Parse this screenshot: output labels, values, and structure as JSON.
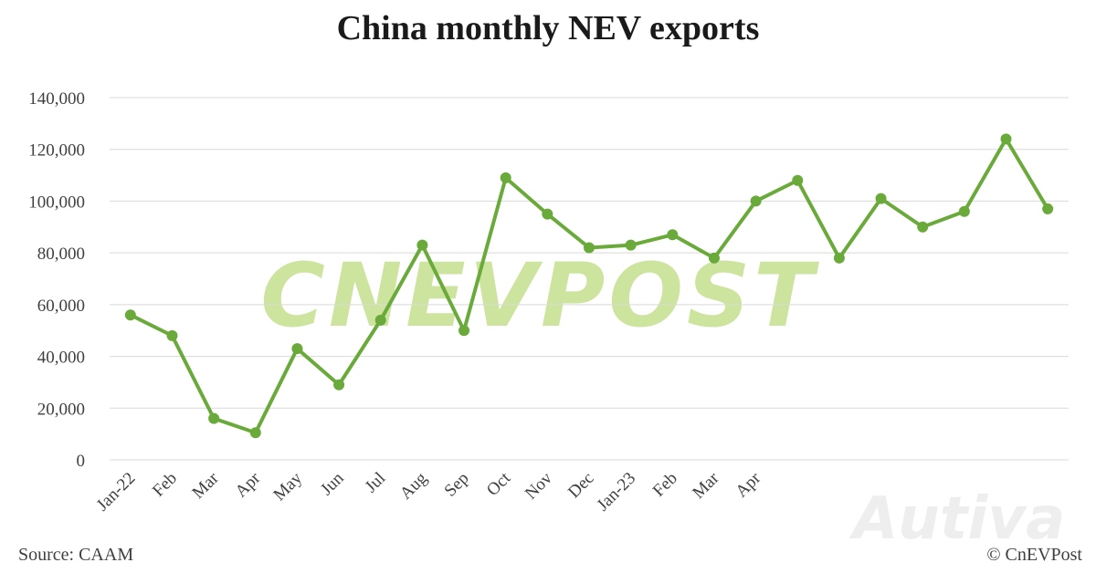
{
  "chart_data": {
    "type": "line",
    "title": "China monthly NEV exports",
    "source": "Source: CAAM",
    "credit": "© CnEVPost",
    "watermark": "CNEVPOST",
    "watermark_secondary": "Autiva",
    "categories": [
      "Jan-22",
      "Feb",
      "Mar",
      "Apr",
      "May",
      "Jun",
      "Jul",
      "Aug",
      "Sep",
      "Oct",
      "Nov",
      "Dec",
      "Jan-23",
      "Feb",
      "Mar",
      "Apr",
      null,
      null,
      null,
      null,
      null,
      null,
      null
    ],
    "series": [
      {
        "name": "NEV exports",
        "color": "#6aaa3a",
        "values": [
          56000,
          48000,
          16000,
          10500,
          43000,
          29000,
          54000,
          83000,
          50000,
          109000,
          95000,
          82000,
          83000,
          87000,
          78000,
          100000,
          108000,
          78000,
          101000,
          90000,
          96000,
          124000,
          97000
        ]
      }
    ],
    "ylim": [
      0,
      140000
    ],
    "yticks": [
      0,
      {
        "value": 20000,
        "label": "20,000"
      },
      {
        "value": 40000,
        "label": "40,000"
      },
      {
        "value": 60000,
        "label": "60,000"
      },
      {
        "value": 80000,
        "label": "80,000"
      },
      {
        "value": 100000,
        "label": "100,000"
      },
      {
        "value": 120000,
        "label": "120,000"
      },
      {
        "value": 140000,
        "label": "140,000"
      }
    ],
    "grid": true
  }
}
